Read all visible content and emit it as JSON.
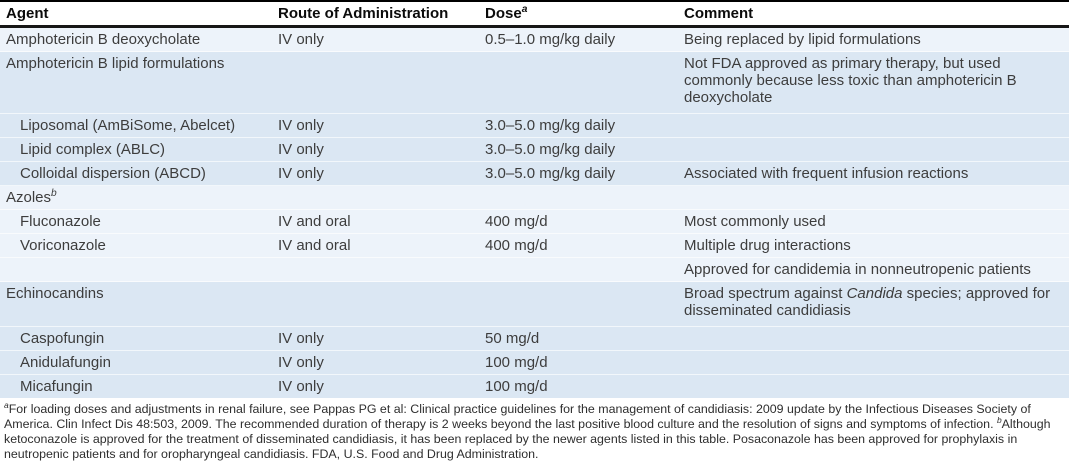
{
  "table": {
    "columns": [
      {
        "id": "agent",
        "label": "Agent"
      },
      {
        "id": "route",
        "label": "Route of Administration"
      },
      {
        "id": "dose",
        "label": "Dose^a"
      },
      {
        "id": "comment",
        "label": "Comment"
      }
    ],
    "rows": [
      {
        "agent": "Amphotericin B deoxycholate",
        "indent": false,
        "route": "IV only",
        "dose": "0.5–1.0 mg/kg daily",
        "comment": "Being replaced by lipid formulations",
        "shade": "light",
        "roomy": false
      },
      {
        "agent": "Amphotericin B lipid formulations",
        "indent": false,
        "route": "",
        "dose": "",
        "comment": "Not FDA approved as primary therapy, but used commonly because less toxic than amphotericin B deoxycholate",
        "shade": "dark",
        "roomy": true
      },
      {
        "agent": "Liposomal (AmBiSome, Abelcet)",
        "indent": true,
        "route": "IV only",
        "dose": "3.0–5.0 mg/kg daily",
        "comment": "",
        "shade": "dark",
        "roomy": false
      },
      {
        "agent": "Lipid complex (ABLC)",
        "indent": true,
        "route": "IV only",
        "dose": "3.0–5.0 mg/kg daily",
        "comment": "",
        "shade": "dark",
        "roomy": false
      },
      {
        "agent": "Colloidal dispersion (ABCD)",
        "indent": true,
        "route": "IV only",
        "dose": "3.0–5.0 mg/kg daily",
        "comment": "Associated with frequent infusion reactions",
        "shade": "dark",
        "roomy": false
      },
      {
        "agent": "Azoles^b",
        "indent": false,
        "route": "",
        "dose": "",
        "comment": "",
        "shade": "light",
        "roomy": false
      },
      {
        "agent": "Fluconazole",
        "indent": true,
        "route": "IV and oral",
        "dose": "400 mg/d",
        "comment": "Most commonly used",
        "shade": "light",
        "roomy": false
      },
      {
        "agent": "Voriconazole",
        "indent": true,
        "route": "IV and oral",
        "dose": "400 mg/d",
        "comment": "Multiple drug interactions",
        "shade": "light",
        "roomy": false
      },
      {
        "agent": "",
        "indent": false,
        "route": "",
        "dose": "",
        "comment": "Approved for candidemia in nonneutropenic patients",
        "shade": "light",
        "roomy": false
      },
      {
        "agent": "Echinocandins",
        "indent": false,
        "route": "",
        "dose": "",
        "comment": "Broad spectrum against *Candida* species; approved for disseminated candidiasis",
        "shade": "dark",
        "roomy": true
      },
      {
        "agent": "Caspofungin",
        "indent": true,
        "route": "IV only",
        "dose": "50 mg/d",
        "comment": "",
        "shade": "dark",
        "roomy": false
      },
      {
        "agent": "Anidulafungin",
        "indent": true,
        "route": "IV only",
        "dose": "100 mg/d",
        "comment": "",
        "shade": "dark",
        "roomy": false
      },
      {
        "agent": "Micafungin",
        "indent": true,
        "route": "IV only",
        "dose": "100 mg/d",
        "comment": "",
        "shade": "dark",
        "roomy": false
      }
    ]
  },
  "footnote": {
    "text": "^aFor loading doses and adjustments in renal failure, see Pappas PG et al: Clinical practice guidelines for the management of candidiasis: 2009 update by the Infectious Diseases Society of America. Clin Infect Dis 48:503, 2009. The recommended duration of therapy is 2 weeks beyond the last positive blood culture and the resolution of signs and symptoms of infection. ^bAlthough ketoconazole is approved for the treatment of disseminated candidiasis, it has been replaced by the newer agents listed in this table. Posaconazole has been approved for prophylaxis in neutropenic patients and for oropharyngeal candidiasis. FDA, U.S. Food and Drug Administration."
  },
  "colors": {
    "row_light": "#edf3fa",
    "row_dark": "#dbe7f3",
    "header_rule": "#161616",
    "body_text": "#3d3d3d"
  }
}
